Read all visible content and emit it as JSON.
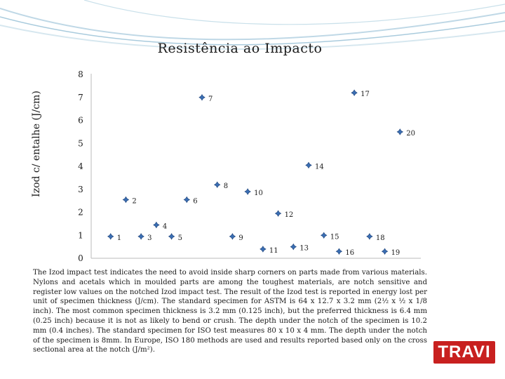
{
  "chart_data": {
    "type": "scatter",
    "title": "Resistência ao Impacto",
    "xlabel": "",
    "ylabel": "Izod c/ entalhe (J/cm)",
    "ylim": [
      0,
      8
    ],
    "yticks": [
      0,
      1,
      2,
      3,
      4,
      5,
      6,
      7,
      8
    ],
    "xlim": [
      0,
      21
    ],
    "grid": false,
    "marker_color": "#3a6fb5",
    "points": [
      {
        "label": "1",
        "x": 1,
        "y": 0.95
      },
      {
        "label": "2",
        "x": 2,
        "y": 2.55
      },
      {
        "label": "3",
        "x": 3,
        "y": 0.95
      },
      {
        "label": "4",
        "x": 4,
        "y": 1.45
      },
      {
        "label": "5",
        "x": 5,
        "y": 0.95
      },
      {
        "label": "6",
        "x": 6,
        "y": 2.55
      },
      {
        "label": "7",
        "x": 7,
        "y": 7.0
      },
      {
        "label": "8",
        "x": 8,
        "y": 3.2
      },
      {
        "label": "9",
        "x": 9,
        "y": 0.95
      },
      {
        "label": "10",
        "x": 10,
        "y": 2.9
      },
      {
        "label": "11",
        "x": 11,
        "y": 0.4
      },
      {
        "label": "12",
        "x": 12,
        "y": 1.95
      },
      {
        "label": "13",
        "x": 13,
        "y": 0.5
      },
      {
        "label": "14",
        "x": 14,
        "y": 4.05
      },
      {
        "label": "15",
        "x": 15,
        "y": 1.0
      },
      {
        "label": "16",
        "x": 16,
        "y": 0.3
      },
      {
        "label": "17",
        "x": 17,
        "y": 7.2
      },
      {
        "label": "18",
        "x": 18,
        "y": 0.95
      },
      {
        "label": "19",
        "x": 19,
        "y": 0.3
      },
      {
        "label": "20",
        "x": 20,
        "y": 5.5
      }
    ]
  },
  "description_text": "The Izod impact test indicates the need to avoid inside sharp corners on parts made from various materials. Nylons and acetals which in moulded parts are among the toughest materials, are notch sensitive and register low values on the notched Izod impact test. The result of the Izod test is reported in energy lost per unit of specimen thickness (J/cm). The standard specimen for ASTM is 64 x 12.7 x 3.2 mm (2½ x ½ x 1/8 inch). The most common specimen thickness is 3.2 mm (0.125 inch), but the preferred thickness is 6.4 mm (0.25 inch) because it is not as likely to bend or crush. The depth under the notch of the specimen is 10.2 mm (0.4 inches). The standard specimen for ISO test measures 80 x 10 x 4 mm. The depth under the notch of the specimen is 8mm. In Europe, ISO 180 methods are used and results reported based only on the cross sectional area at the notch (J/m²).",
  "logo_text": "TRAVI",
  "accent_color": "#c8201f"
}
